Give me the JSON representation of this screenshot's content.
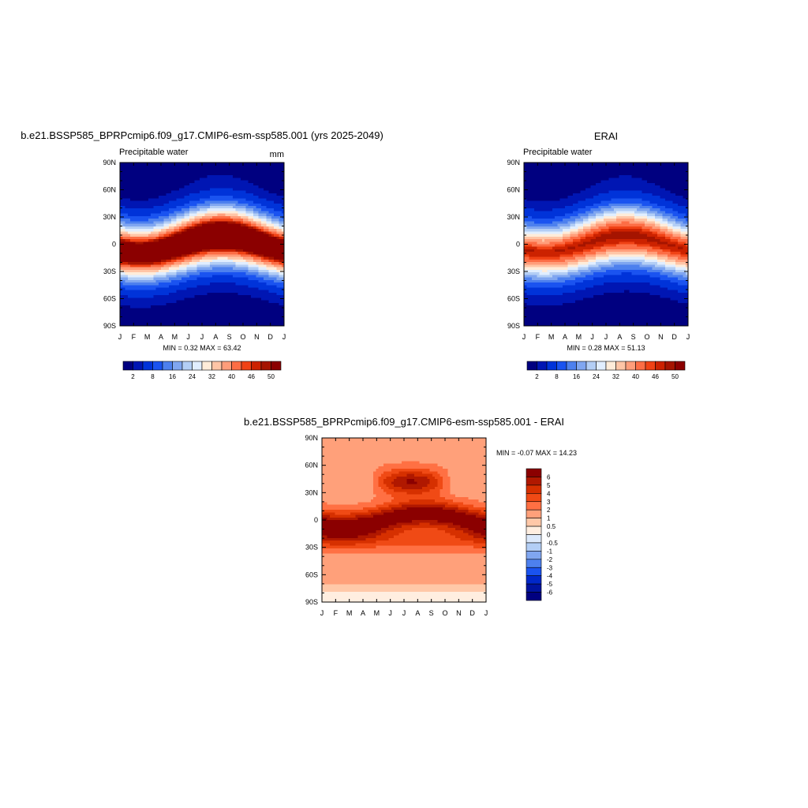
{
  "chart_data": [
    {
      "type": "heatmap",
      "title": "b.e21.BSSP585_BPRPcmip6.f09_g17.CMIP6-esm-ssp585.001 (yrs 2025-2049)",
      "subtitle_left": "Precipitable water",
      "subtitle_right": "mm",
      "stats_label": "MIN =   0.32 MAX =  63.42",
      "x_ticks": [
        "J",
        "F",
        "M",
        "A",
        "M",
        "J",
        "J",
        "A",
        "S",
        "O",
        "N",
        "D",
        "J"
      ],
      "y_ticks": [
        "90N",
        "60N",
        "30N",
        "0",
        "30S",
        "60S",
        "90S"
      ],
      "ylim": [
        -90,
        90
      ],
      "colorbar": {
        "orientation": "horizontal",
        "labels": [
          "2",
          "8",
          "16",
          "24",
          "32",
          "40",
          "46",
          "50"
        ],
        "colors": [
          "#000080",
          "#0016b3",
          "#0033d9",
          "#1a53f0",
          "#4d80ee",
          "#80a6f0",
          "#b3cef5",
          "#e1eeff",
          "#ffecd9",
          "#ffc5a6",
          "#ff9d7a",
          "#fc6d45",
          "#f04215",
          "#cc2200",
          "#a51400",
          "#8b0000"
        ]
      },
      "min": 0.32,
      "max": 63.42,
      "field": "mean"
    },
    {
      "type": "heatmap",
      "title": "ERAI",
      "subtitle_left": "Precipitable water",
      "subtitle_right": "",
      "stats_label": "MIN =   0.28 MAX =  51.13",
      "x_ticks": [
        "J",
        "F",
        "M",
        "A",
        "M",
        "J",
        "J",
        "A",
        "S",
        "O",
        "N",
        "D",
        "J"
      ],
      "y_ticks": [
        "90N",
        "60N",
        "30N",
        "0",
        "30S",
        "60S",
        "90S"
      ],
      "ylim": [
        -90,
        90
      ],
      "colorbar": {
        "orientation": "horizontal",
        "labels": [
          "2",
          "8",
          "16",
          "24",
          "32",
          "40",
          "46",
          "50"
        ],
        "colors": [
          "#000080",
          "#0016b3",
          "#0033d9",
          "#1a53f0",
          "#4d80ee",
          "#80a6f0",
          "#b3cef5",
          "#e1eeff",
          "#ffecd9",
          "#ffc5a6",
          "#ff9d7a",
          "#fc6d45",
          "#f04215",
          "#cc2200",
          "#a51400",
          "#8b0000"
        ]
      },
      "min": 0.28,
      "max": 51.13,
      "field": "mean"
    },
    {
      "type": "heatmap",
      "title": "b.e21.BSSP585_BPRPcmip6.f09_g17.CMIP6-esm-ssp585.001 - ERAI",
      "subtitle_left": "",
      "subtitle_right": "",
      "stats_label": "MIN =  -0.07 MAX =  14.23",
      "x_ticks": [
        "J",
        "F",
        "M",
        "A",
        "M",
        "J",
        "J",
        "A",
        "S",
        "O",
        "N",
        "D",
        "J"
      ],
      "y_ticks": [
        "90N",
        "60N",
        "30N",
        "0",
        "30S",
        "60S",
        "90S"
      ],
      "ylim": [
        -90,
        90
      ],
      "colorbar": {
        "orientation": "vertical",
        "labels": [
          "6",
          "5",
          "4",
          "3",
          "2",
          "1",
          "0.5",
          "0",
          "-0.5",
          "-1",
          "-2",
          "-3",
          "-4",
          "-5",
          "-6"
        ],
        "colors": [
          "#8b0000",
          "#b01800",
          "#d63000",
          "#f04a15",
          "#ff7043",
          "#ffa07a",
          "#ffc8a8",
          "#ffeee0",
          "#dce9fb",
          "#b3cef5",
          "#80a6f0",
          "#4d80ee",
          "#1a53f0",
          "#0027c9",
          "#0013a0",
          "#000080"
        ]
      },
      "min": -0.07,
      "max": 14.23,
      "field": "diff"
    }
  ]
}
